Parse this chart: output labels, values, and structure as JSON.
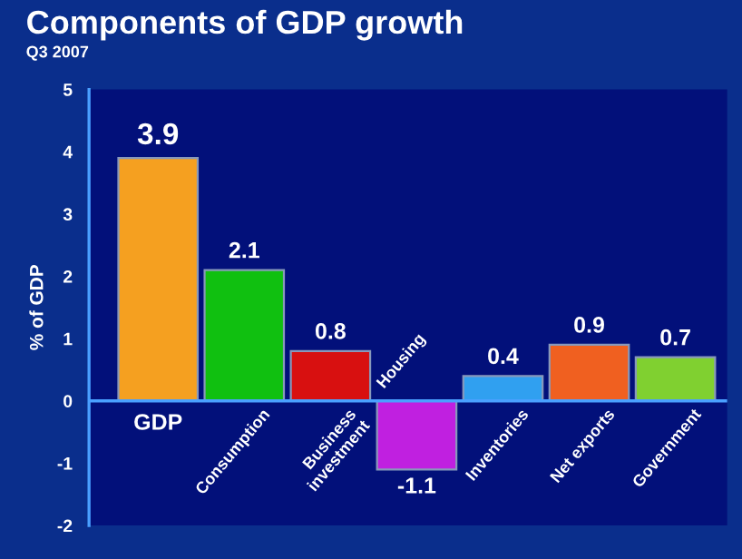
{
  "chart_data": {
    "type": "bar",
    "title": "Components of GDP growth",
    "subtitle": "Q3 2007",
    "ylabel": "% of GDP",
    "categories": [
      "GDP",
      "Consumption",
      "Business\ninvestment",
      "Housing",
      "Inventories",
      "Net exports",
      "Government"
    ],
    "values": [
      3.9,
      2.1,
      0.8,
      -1.1,
      0.4,
      0.9,
      0.7
    ],
    "colors": [
      "#f5a020",
      "#10c010",
      "#d81010",
      "#c020e0",
      "#30a0f0",
      "#f06020",
      "#80d030"
    ],
    "ylim": [
      -2,
      5
    ],
    "yticks": [
      -2,
      -1,
      0,
      1,
      2,
      3,
      4,
      5
    ],
    "data_labels": true,
    "grid": false
  }
}
